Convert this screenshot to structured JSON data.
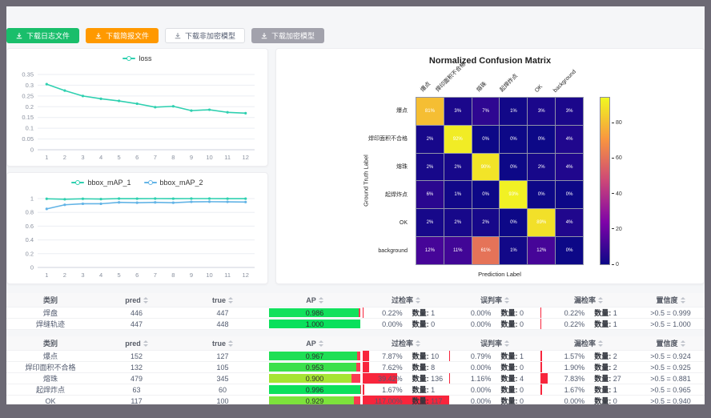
{
  "toolbar": {
    "buttons": [
      {
        "label": "下载日志文件",
        "variant": "success"
      },
      {
        "label": "下载简报文件",
        "variant": "warning"
      },
      {
        "label": "下载非加密模型",
        "variant": "default"
      },
      {
        "label": "下载加密模型",
        "variant": "disabled"
      }
    ]
  },
  "colors": {
    "teal": "#2fd0b0",
    "blue": "#63b4e6",
    "rate_bar_red": "#f8253c",
    "ap_remainder_red": "#fb3a52",
    "button_green": "#19be6b",
    "button_orange": "#ff9900"
  },
  "ui": {
    "count_label": "数量:"
  },
  "chart_data": [
    {
      "type": "line",
      "id": "loss",
      "categories": [
        "1",
        "2",
        "3",
        "4",
        "5",
        "6",
        "7",
        "8",
        "9",
        "10",
        "11",
        "12"
      ],
      "series": [
        {
          "name": "loss",
          "color": "#2fd0b0",
          "values": [
            0.305,
            0.275,
            0.25,
            0.237,
            0.227,
            0.214,
            0.198,
            0.202,
            0.182,
            0.186,
            0.174,
            0.17
          ]
        }
      ],
      "ylim": [
        0,
        0.35
      ],
      "yticks": [
        0,
        0.05,
        0.1,
        0.15,
        0.2,
        0.25,
        0.3,
        0.35
      ],
      "grid": true,
      "legend_position": "top"
    },
    {
      "type": "line",
      "id": "bbox_map",
      "categories": [
        "1",
        "2",
        "3",
        "4",
        "5",
        "6",
        "7",
        "8",
        "9",
        "10",
        "11",
        "12"
      ],
      "series": [
        {
          "name": "bbox_mAP_1",
          "color": "#2fd0b0",
          "values": [
            0.997,
            0.99,
            0.997,
            0.993,
            1,
            0.999,
            1,
            0.999,
            1,
            1,
            0.999,
            0.999
          ]
        },
        {
          "name": "bbox_mAP_2",
          "color": "#63b4e6",
          "values": [
            0.85,
            0.91,
            0.925,
            0.925,
            0.945,
            0.94,
            0.945,
            0.94,
            0.953,
            0.955,
            0.953,
            0.95
          ]
        }
      ],
      "ylim": [
        0,
        1
      ],
      "yticks": [
        0,
        0.2,
        0.4,
        0.6,
        0.8,
        1
      ],
      "grid": true,
      "legend_position": "top"
    },
    {
      "type": "heatmap",
      "id": "confusion_matrix",
      "title": "Normalized Confusion Matrix",
      "xlabel": "Prediction Label",
      "ylabel": "Ground Truth Label",
      "x_categories": [
        "爆点",
        "焊印面积不合格",
        "熔珠",
        "起焊炸点",
        "OK",
        "background"
      ],
      "y_categories": [
        "爆点",
        "焊印面积不合格",
        "熔珠",
        "起焊炸点",
        "OK",
        "background"
      ],
      "values_percent": [
        [
          81,
          3,
          7,
          1,
          3,
          3
        ],
        [
          2,
          92,
          0,
          0,
          0,
          4
        ],
        [
          2,
          2,
          90,
          0,
          2,
          4
        ],
        [
          6,
          1,
          0,
          93,
          0,
          0
        ],
        [
          2,
          2,
          2,
          0,
          89,
          4
        ],
        [
          12,
          11,
          61,
          1,
          12,
          0
        ]
      ],
      "vmax": 95,
      "colormap": "plasma",
      "colorbar_ticks": [
        0,
        20,
        40,
        60,
        80
      ]
    }
  ],
  "tables": [
    {
      "headers": [
        {
          "key": "category",
          "label": "类别",
          "sortable": false
        },
        {
          "key": "pred",
          "label": "pred",
          "sortable": true
        },
        {
          "key": "true",
          "label": "true",
          "sortable": true
        },
        {
          "key": "ap",
          "label": "AP",
          "sortable": true
        },
        {
          "key": "over_rate",
          "label": "过检率",
          "sortable": true
        },
        {
          "key": "mis_rate",
          "label": "误判率",
          "sortable": true
        },
        {
          "key": "miss_rate",
          "label": "漏检率",
          "sortable": true
        },
        {
          "key": "confidence",
          "label": "置信度",
          "sortable": true
        }
      ],
      "rows": [
        {
          "label": "焊盘",
          "pred": 446,
          "true": 447,
          "ap": 0.986,
          "ap_label": "0.986",
          "ap_color": "#12e15d",
          "over": {
            "pct": "0.22%",
            "value": 0.22,
            "count": 1
          },
          "mis": {
            "pct": "0.00%",
            "value": 0,
            "count": 0
          },
          "miss": {
            "pct": "0.22%",
            "value": 0.22,
            "count": 1
          },
          "conf": ">0.5 = 0.999"
        },
        {
          "label": "焊缝轨迹",
          "pred": 447,
          "true": 448,
          "ap": 1.0,
          "ap_label": "1.000",
          "ap_color": "#0ae05c",
          "over": {
            "pct": "0.00%",
            "value": 0,
            "count": 0
          },
          "mis": {
            "pct": "0.00%",
            "value": 0,
            "count": 0
          },
          "miss": {
            "pct": "0.22%",
            "value": 0.22,
            "count": 1
          },
          "conf": ">0.5 = 1.000"
        }
      ]
    },
    {
      "headers": [
        {
          "key": "category",
          "label": "类别",
          "sortable": false
        },
        {
          "key": "pred",
          "label": "pred",
          "sortable": true
        },
        {
          "key": "true",
          "label": "true",
          "sortable": true
        },
        {
          "key": "ap",
          "label": "AP",
          "sortable": true
        },
        {
          "key": "over_rate",
          "label": "过检率",
          "sortable": true
        },
        {
          "key": "mis_rate",
          "label": "误判率",
          "sortable": true
        },
        {
          "key": "miss_rate",
          "label": "漏检率",
          "sortable": true
        },
        {
          "key": "confidence",
          "label": "置信度",
          "sortable": true
        }
      ],
      "rows": [
        {
          "label": "爆点",
          "pred": 152,
          "true": 127,
          "ap": 0.967,
          "ap_label": "0.967",
          "ap_color": "#1fdf55",
          "over": {
            "pct": "7.87%",
            "value": 7.87,
            "count": 10
          },
          "mis": {
            "pct": "0.79%",
            "value": 0.79,
            "count": 1
          },
          "miss": {
            "pct": "1.57%",
            "value": 1.57,
            "count": 2
          },
          "conf": ">0.5 = 0.924"
        },
        {
          "label": "焊印面积不合格",
          "pred": 132,
          "true": 105,
          "ap": 0.953,
          "ap_label": "0.953",
          "ap_color": "#3be04b",
          "over": {
            "pct": "7.62%",
            "value": 7.62,
            "count": 8
          },
          "mis": {
            "pct": "0.00%",
            "value": 0,
            "count": 0
          },
          "miss": {
            "pct": "1.90%",
            "value": 1.9,
            "count": 2
          },
          "conf": ">0.5 = 0.925"
        },
        {
          "label": "熔珠",
          "pred": 479,
          "true": 345,
          "ap": 0.9,
          "ap_label": "0.900",
          "ap_color": "#a6e433",
          "over": {
            "pct": "39.42%",
            "value": 39.42,
            "count": 136
          },
          "mis": {
            "pct": "1.16%",
            "value": 1.16,
            "count": 4
          },
          "miss": {
            "pct": "7.83%",
            "value": 7.83,
            "count": 27
          },
          "conf": ">0.5 = 0.881"
        },
        {
          "label": "起焊炸点",
          "pred": 63,
          "true": 60,
          "ap": 0.996,
          "ap_label": "0.996",
          "ap_color": "#0ce05c",
          "over": {
            "pct": "1.67%",
            "value": 1.67,
            "count": 1
          },
          "mis": {
            "pct": "0.00%",
            "value": 0,
            "count": 0
          },
          "miss": {
            "pct": "1.67%",
            "value": 1.67,
            "count": 1
          },
          "conf": ">0.5 = 0.965"
        },
        {
          "label": "OK",
          "pred": 117,
          "true": 100,
          "ap": 0.929,
          "ap_label": "0.929",
          "ap_color": "#7de23c",
          "over": {
            "pct": "117.00%",
            "value": 117,
            "count": 117
          },
          "mis": {
            "pct": "0.00%",
            "value": 0,
            "count": 0
          },
          "miss": {
            "pct": "0.00%",
            "value": 0,
            "count": 0
          },
          "conf": ">0.5 = 0.940"
        }
      ]
    }
  ]
}
